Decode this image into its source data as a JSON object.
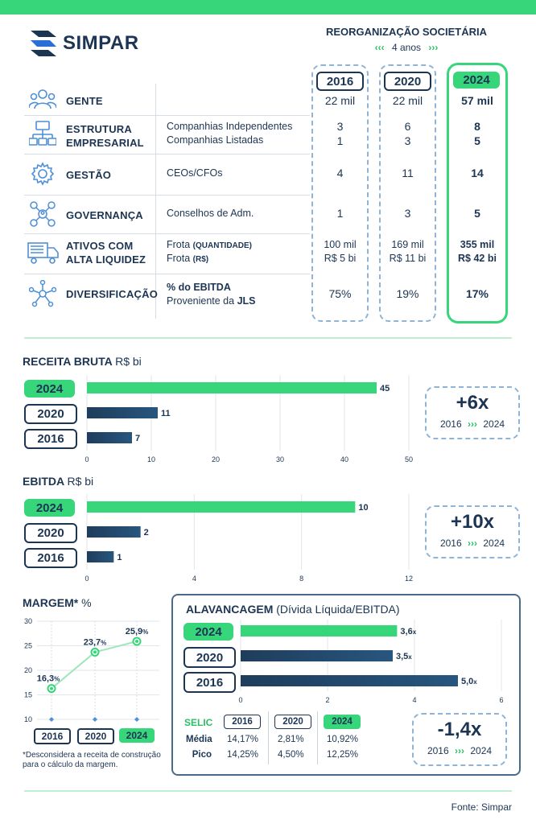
{
  "header": {
    "brand": "SIMPAR",
    "title": "REORGANIZAÇÃO SOCIETÁRIA",
    "subtitle": "4 anos",
    "arrows_left": "‹‹‹",
    "arrows_right": "›››"
  },
  "years": [
    "2016",
    "2020",
    "2024"
  ],
  "rows": [
    {
      "label": "GENTE",
      "desc": [],
      "v2016": [
        "22 mil"
      ],
      "v2020": [
        "22 mil"
      ],
      "v2024": [
        "57 mil"
      ]
    },
    {
      "label1": "ESTRUTURA",
      "label2": "EMPRESARIAL",
      "desc": [
        "Companhias Independentes",
        "Companhias Listadas"
      ],
      "v2016": [
        "3",
        "1"
      ],
      "v2020": [
        "6",
        "3"
      ],
      "v2024": [
        "8",
        "5"
      ]
    },
    {
      "label": "GESTÃO",
      "desc": [
        "CEOs/CFOs"
      ],
      "v2016": [
        "4"
      ],
      "v2020": [
        "11"
      ],
      "v2024": [
        "14"
      ]
    },
    {
      "label": "GOVERNANÇA",
      "desc": [
        "Conselhos de Adm."
      ],
      "v2016": [
        "1"
      ],
      "v2020": [
        "3"
      ],
      "v2024": [
        "5"
      ]
    },
    {
      "label1": "ATIVOS COM",
      "label2": "ALTA LIQUIDEZ",
      "desc_a": "Frota",
      "desc_a_b": "(QUANTIDADE)",
      "desc_b": "Frota",
      "desc_b_b": "(R$)",
      "v2016": [
        "100 mil",
        "R$ 5 bi"
      ],
      "v2020": [
        "169 mil",
        "R$ 11 bi"
      ],
      "v2024": [
        "355 mil",
        "R$ 42 bi"
      ]
    },
    {
      "label": "DIVERSIFICAÇÃO",
      "desc_1": "% do EBITDA",
      "desc_2a": "Proveniente da ",
      "desc_2b": "JLS",
      "v2016": [
        "75%"
      ],
      "v2020": [
        "19%"
      ],
      "v2024": [
        "17%"
      ]
    }
  ],
  "receita": {
    "title": "RECEITA BRUTA",
    "unit": "R$ bi",
    "multiple": "+6x",
    "from": "2016",
    "to": "2024",
    "arrows": "›››"
  },
  "ebitda": {
    "title": "EBITDA",
    "unit": "R$ bi",
    "multiple": "+10x",
    "from": "2016",
    "to": "2024",
    "arrows": "›››"
  },
  "margem": {
    "title": "MARGEM*",
    "unit": "%",
    "footnote_1": "*Desconsidera a receita de construção",
    "footnote_2": "para o cálculo da margem."
  },
  "alavancagem": {
    "title": "ALAVANCAGEM",
    "subtitle": "(Dívida Líquida/EBITDA)",
    "multiple": "-1,4x",
    "from": "2016",
    "to": "2024",
    "arrows": "›››",
    "selic": {
      "label": "SELIC",
      "row_labels": [
        "Média",
        "Pico"
      ],
      "values": {
        "2016": [
          "14,17%",
          "14,25%"
        ],
        "2020": [
          "2,81%",
          "4,50%"
        ],
        "2024": [
          "10,92%",
          "12,25%"
        ]
      }
    }
  },
  "footer": {
    "source": "Fonte: Simpar"
  },
  "colors": {
    "green": "#37d67a",
    "navy": "#1c3553",
    "dashed": "#8fb4d6"
  },
  "chart_data": [
    {
      "type": "bar",
      "title": "RECEITA BRUTA R$ bi",
      "categories": [
        "2024",
        "2020",
        "2016"
      ],
      "values": [
        45,
        11,
        7
      ],
      "xlim": [
        0,
        50
      ],
      "ticks": [
        0,
        10,
        20,
        30,
        40,
        50
      ]
    },
    {
      "type": "bar",
      "title": "EBITDA R$ bi",
      "categories": [
        "2024",
        "2020",
        "2016"
      ],
      "values": [
        10,
        2,
        1
      ],
      "xlim": [
        0,
        12
      ],
      "ticks": [
        0,
        4,
        8,
        12
      ]
    },
    {
      "type": "line",
      "title": "MARGEM* %",
      "x": [
        "2016",
        "2020",
        "2024"
      ],
      "values": [
        16.3,
        23.7,
        25.9
      ],
      "labels": [
        "16,3",
        "23,7",
        "25,9"
      ],
      "label_unit": "%",
      "ylim": [
        10,
        30
      ],
      "ticks": [
        10,
        15,
        20,
        25,
        30
      ]
    },
    {
      "type": "bar",
      "title": "ALAVANCAGEM (Dívida Líquida/EBITDA)",
      "categories": [
        "2024",
        "2020",
        "2016"
      ],
      "values": [
        3.6,
        3.5,
        5.0
      ],
      "labels": [
        "3,6",
        "3,5",
        "5,0"
      ],
      "label_unit": "x",
      "xlim": [
        0,
        6
      ],
      "ticks": [
        0,
        2,
        4,
        6
      ]
    }
  ]
}
